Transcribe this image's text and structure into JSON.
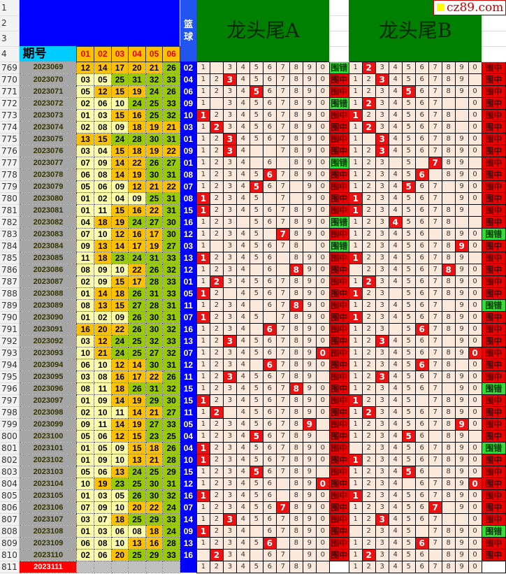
{
  "header": {
    "col_rows": [
      "1",
      "2",
      "3",
      "4"
    ],
    "period_label": "期号",
    "ball_labels": [
      "01",
      "02",
      "03",
      "04",
      "05",
      "06"
    ],
    "blue_label": "篮球",
    "title_a": "龙头尾A",
    "title_b": "龙头尾B",
    "logo_text": "cz89.com"
  },
  "colors": {
    "low": "#ffffa8",
    "mid": "#ffc000",
    "high": "#99cc00",
    "blue": "#0000ff",
    "hit": "#ee1111",
    "ok": "#ee0000",
    "ng": "#33dd33",
    "grid_green": "#008000"
  },
  "rows": [
    {
      "n": "769",
      "p": "2023069",
      "r": [
        "12",
        "14",
        "17",
        "20",
        "21",
        "26"
      ],
      "bl": "02",
      "a": [
        "1_34567890",
        "",
        "围错"
      ],
      "b": [
        "1234567890",
        "2",
        "围中"
      ]
    },
    {
      "n": "770",
      "p": "2023070",
      "r": [
        "03",
        "05",
        "25",
        "31",
        "32",
        "33"
      ],
      "bl": "04",
      "a": [
        "1234567890",
        "3",
        "围中"
      ],
      "b": [
        "123456789_",
        "3",
        "围中"
      ]
    },
    {
      "n": "771",
      "p": "2023071",
      "r": [
        "05",
        "12",
        "15",
        "19",
        "24",
        "26"
      ],
      "bl": "06",
      "a": [
        "1234567890",
        "5",
        "围中"
      ],
      "b": [
        "1234567890",
        "5",
        "围中"
      ]
    },
    {
      "n": "772",
      "p": "2023072",
      "r": [
        "02",
        "06",
        "10",
        "24",
        "25",
        "33"
      ],
      "bl": "09",
      "a": [
        "1_34567890",
        "",
        "围错"
      ],
      "b": [
        "1234567__0",
        "2",
        "围中"
      ]
    },
    {
      "n": "773",
      "p": "2023073",
      "r": [
        "01",
        "03",
        "15",
        "16",
        "25",
        "32"
      ],
      "bl": "10",
      "a": [
        "1234567890",
        "1",
        "围中"
      ],
      "b": [
        "12345678_0",
        "1",
        "围中"
      ]
    },
    {
      "n": "774",
      "p": "2023074",
      "r": [
        "02",
        "08",
        "09",
        "18",
        "19",
        "21"
      ],
      "bl": "03",
      "a": [
        "1234567890",
        "2",
        "围中"
      ],
      "b": [
        "12345678_0",
        "2",
        "围中"
      ]
    },
    {
      "n": "775",
      "p": "2023075",
      "r": [
        "13",
        "15",
        "24",
        "28",
        "30",
        "31"
      ],
      "bl": "01",
      "a": [
        "1234567890",
        "3",
        "围中"
      ],
      "b": [
        "1_34567890",
        "3",
        "围中"
      ]
    },
    {
      "n": "776",
      "p": "2023076",
      "r": [
        "03",
        "04",
        "15",
        "18",
        "19",
        "22"
      ],
      "bl": "09",
      "a": [
        "1234__7890",
        "3",
        "围中"
      ],
      "b": [
        "1234567890",
        "3",
        "围中"
      ]
    },
    {
      "n": "777",
      "p": "2023077",
      "r": [
        "07",
        "09",
        "14",
        "22",
        "26",
        "27"
      ],
      "bl": "01",
      "a": [
        "1234_6_890",
        "",
        "围错"
      ],
      "b": [
        "123_5_789_",
        "7",
        "围中"
      ]
    },
    {
      "n": "778",
      "p": "2023078",
      "r": [
        "06",
        "08",
        "14",
        "19",
        "30",
        "31"
      ],
      "bl": "08",
      "a": [
        "1234567890",
        "6",
        "围中"
      ],
      "b": [
        "123456_890",
        "6",
        "围中"
      ]
    },
    {
      "n": "779",
      "p": "2023079",
      "r": [
        "05",
        "06",
        "09",
        "12",
        "21",
        "22"
      ],
      "bl": "07",
      "a": [
        "1234567_90",
        "5",
        "围中"
      ],
      "b": [
        "1234567_90",
        "5",
        "围中"
      ]
    },
    {
      "n": "780",
      "p": "2023080",
      "r": [
        "01",
        "02",
        "04",
        "09",
        "25",
        "31"
      ],
      "bl": "08",
      "a": [
        "12345_7_90",
        "1",
        "围中"
      ],
      "b": [
        "1234567_90",
        "1",
        "围中"
      ]
    },
    {
      "n": "781",
      "p": "2023081",
      "r": [
        "01",
        "11",
        "15",
        "16",
        "22",
        "31"
      ],
      "bl": "15",
      "a": [
        "1234567890",
        "1",
        "围中"
      ],
      "b": [
        "123456789_",
        "1",
        "围中"
      ]
    },
    {
      "n": "782",
      "p": "2023082",
      "r": [
        "04",
        "18",
        "19",
        "24",
        "27",
        "30"
      ],
      "bl": "16",
      "a": [
        "123_567890",
        "",
        "围错"
      ],
      "b": [
        "12345678__",
        "4",
        "围中"
      ]
    },
    {
      "n": "783",
      "p": "2023083",
      "r": [
        "07",
        "10",
        "12",
        "16",
        "17",
        "30"
      ],
      "bl": "12",
      "a": [
        "12345_7890",
        "7",
        "围中"
      ],
      "b": [
        "123456_890",
        "",
        "围错"
      ]
    },
    {
      "n": "784",
      "p": "2023084",
      "r": [
        "09",
        "13",
        "14",
        "17",
        "19",
        "27"
      ],
      "bl": "03",
      "a": [
        "1_345678_0",
        "",
        "围错"
      ],
      "b": [
        "1234567890",
        "9",
        "围中"
      ]
    },
    {
      "n": "785",
      "p": "2023085",
      "r": [
        "11",
        "18",
        "23",
        "24",
        "31",
        "33"
      ],
      "bl": "13",
      "a": [
        "123456_890",
        "1",
        "围中"
      ],
      "b": [
        "123456789_",
        "1",
        "围中"
      ]
    },
    {
      "n": "786",
      "p": "2023086",
      "r": [
        "08",
        "09",
        "10",
        "22",
        "26",
        "32"
      ],
      "bl": "12",
      "a": [
        "1234_6_890",
        "8",
        "围中"
      ],
      "b": [
        "_234567890",
        "8",
        "围中"
      ]
    },
    {
      "n": "787",
      "p": "2023087",
      "r": [
        "02",
        "09",
        "15",
        "17",
        "28",
        "33"
      ],
      "bl": "01",
      "a": [
        "1234567890",
        "2",
        "围中"
      ],
      "b": [
        "1234567890",
        "2",
        "围中"
      ]
    },
    {
      "n": "788",
      "p": "2023088",
      "r": [
        "01",
        "14",
        "18",
        "26",
        "31",
        "33"
      ],
      "bl": "05",
      "a": [
        "12_4567890",
        "1",
        "围中"
      ],
      "b": [
        "123_567890",
        "1",
        "围中"
      ]
    },
    {
      "n": "789",
      "p": "2023089",
      "r": [
        "08",
        "13",
        "15",
        "27",
        "28",
        "31"
      ],
      "bl": "11",
      "a": [
        "1234_67890",
        "8",
        "围中"
      ],
      "b": [
        "1234567_90",
        "",
        "围错"
      ]
    },
    {
      "n": "790",
      "p": "2023090",
      "r": [
        "01",
        "02",
        "09",
        "26",
        "30",
        "31"
      ],
      "bl": "07",
      "a": [
        "12345_7890",
        "1",
        "围中"
      ],
      "b": [
        "1234567890",
        "1",
        "围中"
      ]
    },
    {
      "n": "791",
      "p": "2023091",
      "r": [
        "16",
        "20",
        "22",
        "26",
        "30",
        "32"
      ],
      "bl": "16",
      "a": [
        "1234_67890",
        "6",
        "围中"
      ],
      "b": [
        "123_567890",
        "6",
        "围中"
      ]
    },
    {
      "n": "792",
      "p": "2023092",
      "r": [
        "03",
        "12",
        "24",
        "25",
        "32",
        "33"
      ],
      "bl": "13",
      "a": [
        "1234567890",
        "3",
        "围中"
      ],
      "b": [
        "1234567_90",
        "3",
        "围中"
      ]
    },
    {
      "n": "793",
      "p": "2023093",
      "r": [
        "10",
        "21",
        "24",
        "25",
        "27",
        "32"
      ],
      "bl": "07",
      "a": [
        "1234567890",
        "0",
        "围中"
      ],
      "b": [
        "1234567890",
        "0",
        "围中"
      ]
    },
    {
      "n": "794",
      "p": "2023094",
      "r": [
        "06",
        "10",
        "12",
        "14",
        "30",
        "31"
      ],
      "bl": "12",
      "a": [
        "1234_67890",
        "6",
        "围中"
      ],
      "b": [
        "12345678_0",
        "6",
        "围中"
      ]
    },
    {
      "n": "795",
      "p": "2023095",
      "r": [
        "03",
        "08",
        "16",
        "17",
        "22",
        "26"
      ],
      "bl": "11",
      "a": [
        "123456789_",
        "3",
        "围中"
      ],
      "b": [
        "1234567890",
        "3",
        "围中"
      ]
    },
    {
      "n": "796",
      "p": "2023096",
      "r": [
        "08",
        "11",
        "18",
        "26",
        "31",
        "32"
      ],
      "bl": "15",
      "a": [
        "1234567890",
        "8",
        "围中"
      ],
      "b": [
        "1234567_90",
        "",
        "围错"
      ]
    },
    {
      "n": "797",
      "p": "2023097",
      "r": [
        "01",
        "09",
        "14",
        "19",
        "29",
        "30"
      ],
      "bl": "15",
      "a": [
        "1234567890",
        "1",
        "围中"
      ],
      "b": [
        "12345_7890",
        "1",
        "围中"
      ]
    },
    {
      "n": "798",
      "p": "2023098",
      "r": [
        "02",
        "10",
        "11",
        "14",
        "21",
        "27"
      ],
      "bl": "11",
      "a": [
        "12_4567890",
        "2",
        "围中"
      ],
      "b": [
        "1234567890",
        "2",
        "围中"
      ]
    },
    {
      "n": "799",
      "p": "2023099",
      "r": [
        "09",
        "11",
        "14",
        "19",
        "27",
        "33"
      ],
      "bl": "05",
      "a": [
        "123456789_",
        "9",
        "围中"
      ],
      "b": [
        "1234567890",
        "9",
        "围中"
      ]
    },
    {
      "n": "800",
      "p": "2023100",
      "r": [
        "05",
        "06",
        "12",
        "15",
        "23",
        "25"
      ],
      "bl": "04",
      "a": [
        "123456789_",
        "5",
        "围中"
      ],
      "b": [
        "123456_89_",
        "5",
        "围中"
      ]
    },
    {
      "n": "801",
      "p": "2023101",
      "r": [
        "01",
        "05",
        "09",
        "15",
        "18",
        "26"
      ],
      "bl": "04",
      "a": [
        "1234567890",
        "1",
        "围中"
      ],
      "b": [
        "_234567890",
        "",
        "围错"
      ]
    },
    {
      "n": "802",
      "p": "2023102",
      "r": [
        "01",
        "09",
        "10",
        "13",
        "21",
        "28"
      ],
      "bl": "10",
      "a": [
        "1234567890",
        "1",
        "围中"
      ],
      "b": [
        "1234567890",
        "1",
        "围中"
      ]
    },
    {
      "n": "803",
      "p": "2023103",
      "r": [
        "05",
        "06",
        "13",
        "24",
        "25",
        "29"
      ],
      "bl": "15",
      "a": [
        "123456789_",
        "5",
        "围中"
      ],
      "b": [
        "123456_890",
        "5",
        "围中"
      ]
    },
    {
      "n": "804",
      "p": "2023104",
      "r": [
        "10",
        "19",
        "23",
        "25",
        "30",
        "31"
      ],
      "bl": "12",
      "a": [
        "123456_890",
        "0",
        "围中"
      ],
      "b": [
        "1234_67890",
        "0",
        "围中"
      ]
    },
    {
      "n": "805",
      "p": "2023105",
      "r": [
        "01",
        "03",
        "05",
        "26",
        "30",
        "32"
      ],
      "bl": "16",
      "a": [
        "123456_890",
        "1",
        "围中"
      ],
      "b": [
        "1234567890",
        "1",
        "围中"
      ]
    },
    {
      "n": "806",
      "p": "2023106",
      "r": [
        "07",
        "09",
        "10",
        "20",
        "22",
        "24"
      ],
      "bl": "07",
      "a": [
        "1234567890",
        "7",
        "围中"
      ],
      "b": [
        "1234567_90",
        "7",
        "围中"
      ]
    },
    {
      "n": "807",
      "p": "2023107",
      "r": [
        "03",
        "07",
        "18",
        "25",
        "29",
        "33"
      ],
      "bl": "14",
      "a": [
        "1234567890",
        "3",
        "围中"
      ],
      "b": [
        "1234567__0",
        "3",
        "围中"
      ]
    },
    {
      "n": "808",
      "p": "2023108",
      "r": [
        "01",
        "03",
        "06",
        "08",
        "18",
        "24"
      ],
      "bl": "09",
      "a": [
        "1234_67890",
        "1",
        "围中"
      ],
      "b": [
        "_2345_7890",
        "",
        "围错"
      ]
    },
    {
      "n": "809",
      "p": "2023109",
      "r": [
        "06",
        "08",
        "10",
        "13",
        "16",
        "28"
      ],
      "bl": "13",
      "a": [
        "123456_890",
        "6",
        "围中"
      ],
      "b": [
        "1234567890",
        "6",
        "围中"
      ]
    },
    {
      "n": "810",
      "p": "2023110",
      "r": [
        "02",
        "06",
        "20",
        "25",
        "29",
        "33"
      ],
      "bl": "16",
      "a": [
        "_234_67_90",
        "2",
        "围中"
      ],
      "b": [
        "123456_890",
        "2",
        "围中"
      ]
    },
    {
      "n": "811",
      "p": "2023111",
      "r": [],
      "bl": "",
      "a": [
        "123456789_",
        "",
        ""
      ],
      "b": [
        "1234567890",
        "",
        ""
      ],
      "next": true
    }
  ]
}
